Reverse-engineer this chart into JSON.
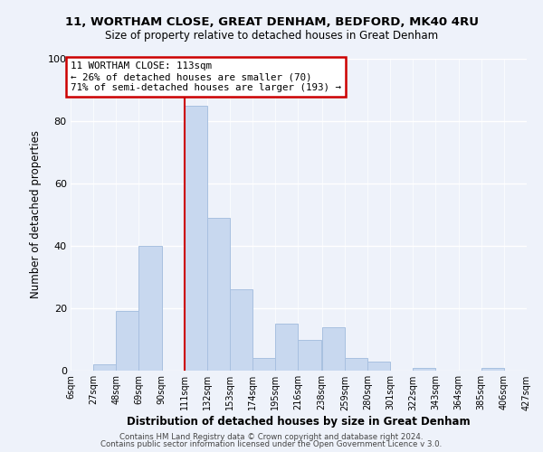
{
  "title1": "11, WORTHAM CLOSE, GREAT DENHAM, BEDFORD, MK40 4RU",
  "title2": "Size of property relative to detached houses in Great Denham",
  "xlabel": "Distribution of detached houses by size in Great Denham",
  "ylabel": "Number of detached properties",
  "bar_color": "#c8d8ef",
  "bar_edge_color": "#a8c0e0",
  "bins": [
    6,
    27,
    48,
    69,
    90,
    111,
    132,
    153,
    174,
    195,
    216,
    238,
    259,
    280,
    301,
    322,
    343,
    364,
    385,
    406,
    427
  ],
  "counts": [
    0,
    2,
    19,
    40,
    0,
    85,
    49,
    26,
    4,
    15,
    10,
    14,
    4,
    3,
    0,
    1,
    0,
    0,
    1,
    0
  ],
  "tick_labels": [
    "6sqm",
    "27sqm",
    "48sqm",
    "69sqm",
    "90sqm",
    "111sqm",
    "132sqm",
    "153sqm",
    "174sqm",
    "195sqm",
    "216sqm",
    "238sqm",
    "259sqm",
    "280sqm",
    "301sqm",
    "322sqm",
    "343sqm",
    "364sqm",
    "385sqm",
    "406sqm",
    "427sqm"
  ],
  "ylim": [
    0,
    100
  ],
  "property_line_x": 111,
  "property_line_color": "#cc0000",
  "annotation_title": "11 WORTHAM CLOSE: 113sqm",
  "annotation_line1": "← 26% of detached houses are smaller (70)",
  "annotation_line2": "71% of semi-detached houses are larger (193) →",
  "annotation_box_color": "#ffffff",
  "annotation_box_edge": "#cc0000",
  "footer1": "Contains HM Land Registry data © Crown copyright and database right 2024.",
  "footer2": "Contains public sector information licensed under the Open Government Licence v 3.0.",
  "background_color": "#eef2fa"
}
